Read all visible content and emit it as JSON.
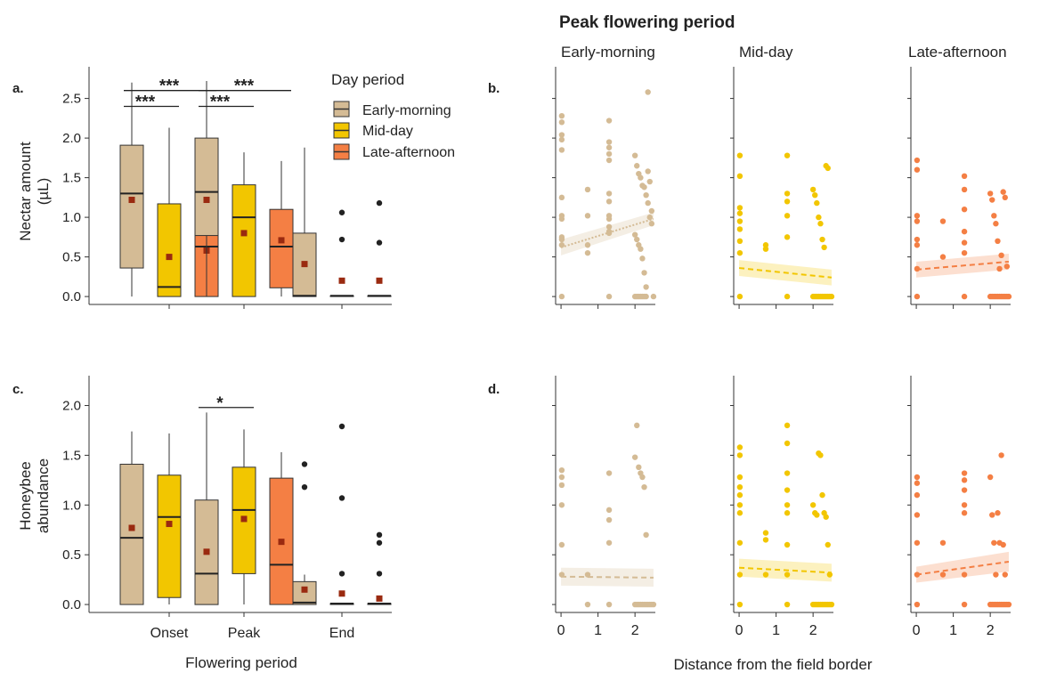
{
  "colors": {
    "early": "#d4bb95",
    "mid": "#f2c600",
    "late": "#f47f44",
    "box_stroke": "#333333",
    "mean_marker": "#9a2a10",
    "outlier": "#222222"
  },
  "figure": {
    "peak_title": "Peak flowering period",
    "facet_titles": [
      "Early-morning",
      "Mid-day",
      "Late-afternoon"
    ],
    "x_label_left": "Flowering period",
    "x_label_right": "Distance from the field border"
  },
  "legend": {
    "title": "Day period",
    "items": [
      "Early-morning",
      "Mid-day",
      "Late-afternoon"
    ]
  },
  "chart_data": [
    {
      "panel": "a.",
      "type": "box",
      "ylabel": [
        "Nectar amount",
        "(µL)"
      ],
      "ylim": [
        -0.1,
        2.9
      ],
      "yticks": [
        "0.0",
        "0.5",
        "1.0",
        "1.5",
        "2.0",
        "2.5"
      ],
      "categories": [
        "Onset",
        "Peak",
        "End"
      ],
      "groups": [
        {
          "category": "Onset",
          "period": "Early-morning",
          "q1": 0.36,
          "median": 1.3,
          "q3": 1.91,
          "wmin": 0.0,
          "wmax": 2.7,
          "mean": 1.22,
          "outliers": []
        },
        {
          "category": "Onset",
          "period": "Mid-day",
          "q1": 0.0,
          "median": 0.12,
          "q3": 1.17,
          "wmin": 0.0,
          "wmax": 2.13,
          "mean": 0.5,
          "outliers": []
        },
        {
          "category": "Onset",
          "period": "Late-afternoon",
          "q1": 0.0,
          "median": 0.63,
          "q3": 1.15,
          "wmin": 0.0,
          "wmax": 2.24,
          "mean": 0.58,
          "outliers": []
        },
        {
          "category": "Peak",
          "period": "Early-morning",
          "q1": 0.77,
          "median": 1.32,
          "q3": 2.0,
          "wmin": 0.0,
          "wmax": 2.72,
          "mean": 1.22,
          "outliers": []
        },
        {
          "category": "Peak",
          "period": "Mid-day",
          "q1": 0.0,
          "median": 1.0,
          "q3": 1.41,
          "wmin": 0.0,
          "wmax": 1.82,
          "mean": 0.8,
          "outliers": []
        },
        {
          "category": "Peak",
          "period": "Late-afternoon",
          "q1": 0.11,
          "median": 0.63,
          "q3": 1.1,
          "wmin": 0.0,
          "wmax": 1.71,
          "mean": 0.71,
          "outliers": []
        },
        {
          "category": "End",
          "period": "Early-morning",
          "q1": 0.0,
          "median": 0.01,
          "q3": 0.8,
          "wmin": 0.0,
          "wmax": 1.88,
          "mean": 0.41,
          "outliers": []
        },
        {
          "category": "End",
          "period": "Mid-day",
          "q1": 0.0,
          "median": 0.01,
          "q3": 0.01,
          "wmin": 0.0,
          "wmax": 0.01,
          "mean": 0.2,
          "outliers": [
            1.06,
            0.72
          ]
        },
        {
          "category": "End",
          "period": "Late-afternoon",
          "q1": 0.0,
          "median": 0.01,
          "q3": 0.01,
          "wmin": 0.0,
          "wmax": 0.01,
          "mean": 0.2,
          "outliers": [
            1.18,
            0.68
          ]
        }
      ],
      "significance": [
        {
          "label": "***",
          "category": "Onset",
          "from": 0,
          "to": 2,
          "y": 2.6
        },
        {
          "label": "***",
          "category": "Onset",
          "from": 0,
          "to": 1,
          "y": 2.4
        },
        {
          "label": "***",
          "category": "Peak",
          "from": 0,
          "to": 2,
          "y": 2.6
        },
        {
          "label": "***",
          "category": "Peak",
          "from": 0,
          "to": 1,
          "y": 2.4
        }
      ]
    },
    {
      "panel": "c.",
      "type": "box",
      "ylabel": [
        "Honeybee",
        "abundance"
      ],
      "ylim": [
        -0.08,
        2.3
      ],
      "yticks": [
        "0.0",
        "0.5",
        "1.0",
        "1.5",
        "2.0"
      ],
      "categories": [
        "Onset",
        "Peak",
        "End"
      ],
      "groups": [
        {
          "category": "Onset",
          "period": "Early-morning",
          "q1": 0.0,
          "median": 0.67,
          "q3": 1.41,
          "wmin": 0.0,
          "wmax": 1.74,
          "mean": 0.77,
          "outliers": []
        },
        {
          "category": "Onset",
          "period": "Mid-day",
          "q1": 0.07,
          "median": 0.88,
          "q3": 1.3,
          "wmin": 0.0,
          "wmax": 1.72,
          "mean": 0.81,
          "outliers": []
        },
        {
          "category": "Onset",
          "period": "Late-afternoon",
          "q1": 0.0,
          "median": 0.31,
          "q3": 0.91,
          "wmin": 0.0,
          "wmax": 1.76,
          "mean": 0.52,
          "outliers": []
        },
        {
          "category": "Peak",
          "period": "Early-morning",
          "q1": 0.0,
          "median": 0.31,
          "q3": 1.05,
          "wmin": 0.0,
          "wmax": 1.93,
          "mean": 0.53,
          "outliers": []
        },
        {
          "category": "Peak",
          "period": "Mid-day",
          "q1": 0.31,
          "median": 0.95,
          "q3": 1.38,
          "wmin": 0.0,
          "wmax": 1.76,
          "mean": 0.86,
          "outliers": []
        },
        {
          "category": "Peak",
          "period": "Late-afternoon",
          "q1": 0.0,
          "median": 0.4,
          "q3": 1.27,
          "wmin": 0.0,
          "wmax": 1.53,
          "mean": 0.63,
          "outliers": []
        },
        {
          "category": "End",
          "period": "Early-morning",
          "q1": 0.0,
          "median": 0.02,
          "q3": 0.23,
          "wmin": 0.0,
          "wmax": 0.3,
          "mean": 0.15,
          "outliers": [
            1.41,
            1.18
          ]
        },
        {
          "category": "End",
          "period": "Mid-day",
          "q1": 0.0,
          "median": 0.01,
          "q3": 0.01,
          "wmin": 0.0,
          "wmax": 0.01,
          "mean": 0.11,
          "outliers": [
            1.79,
            1.07,
            0.31
          ]
        },
        {
          "category": "End",
          "period": "Late-afternoon",
          "q1": 0.0,
          "median": 0.01,
          "q3": 0.01,
          "wmin": 0.0,
          "wmax": 0.01,
          "mean": 0.06,
          "outliers": [
            0.7,
            0.62,
            0.31
          ]
        }
      ],
      "significance": [
        {
          "label": "*",
          "category": "Peak",
          "from": 0,
          "to": 1,
          "y": 1.98
        }
      ]
    },
    {
      "panel": "b.",
      "type": "scatter",
      "xlim": [
        -0.05,
        2.55
      ],
      "xticks": [
        "0",
        "1",
        "2"
      ],
      "ylim": [
        -0.1,
        2.9
      ],
      "facets": [
        {
          "title": "Early-morning",
          "line": {
            "y0": 0.62,
            "y1": 0.98,
            "style": "dotted"
          },
          "band": {
            "w0": 0.1,
            "w1": 0.08
          },
          "x": [
            0.02,
            0.02,
            0.02,
            0.02,
            0.02,
            0.02,
            0.02,
            0.02,
            0.02,
            0.02,
            0.02,
            0.02,
            0.72,
            0.72,
            0.72,
            0.72,
            1.3,
            1.3,
            1.3,
            1.3,
            1.3,
            1.3,
            1.3,
            1.3,
            1.3,
            1.3,
            1.3,
            1.3,
            1.3,
            2.0,
            2.05,
            2.1,
            2.15,
            2.2,
            2.25,
            2.3,
            2.35,
            2.4,
            2.45,
            2.0,
            2.05,
            2.1,
            2.15,
            2.2,
            2.25,
            2.3,
            2.35,
            2.0,
            2.05,
            2.1,
            2.15,
            2.2,
            2.25,
            2.3,
            2.35,
            2.4,
            2.45,
            2.5
          ],
          "y": [
            2.28,
            2.2,
            2.04,
            1.98,
            1.85,
            1.25,
            1.02,
            0.98,
            0.75,
            0.72,
            0.65,
            0.0,
            1.35,
            1.02,
            0.65,
            0.55,
            2.22,
            1.95,
            1.88,
            1.8,
            1.72,
            1.3,
            1.2,
            1.02,
            0.98,
            0.88,
            0.82,
            0.8,
            0.0,
            1.78,
            1.65,
            1.55,
            1.5,
            1.4,
            1.38,
            1.28,
            1.18,
            1.0,
            0.92,
            0.78,
            0.72,
            0.65,
            0.6,
            0.48,
            0.3,
            0.12,
            2.58,
            0.0,
            0.0,
            0.0,
            0.0,
            0.0,
            0.0,
            0.0,
            1.58,
            1.45,
            1.08,
            0.0
          ]
        },
        {
          "title": "Mid-day",
          "line": {
            "y0": 0.36,
            "y1": 0.24,
            "style": "dashed"
          },
          "band": {
            "w0": 0.1,
            "w1": 0.1
          },
          "x": [
            0.02,
            0.02,
            0.02,
            0.02,
            0.02,
            0.02,
            0.02,
            0.02,
            0.02,
            0.72,
            0.72,
            1.3,
            1.3,
            1.3,
            1.3,
            1.3,
            1.3,
            2.0,
            2.05,
            2.1,
            2.15,
            2.2,
            2.25,
            2.3,
            2.35,
            2.4,
            2.0,
            2.05,
            2.1,
            2.15,
            2.2,
            2.25,
            2.3,
            2.35,
            2.4,
            2.45,
            2.5
          ],
          "y": [
            1.78,
            1.52,
            1.12,
            1.05,
            0.95,
            0.85,
            0.7,
            0.55,
            0.0,
            0.65,
            0.6,
            1.78,
            1.3,
            1.2,
            1.02,
            0.75,
            0.0,
            1.35,
            1.28,
            1.18,
            1.0,
            0.92,
            0.72,
            0.62,
            1.65,
            1.62,
            0.0,
            0.0,
            0.0,
            0.0,
            0.0,
            0.0,
            0.0,
            0.0,
            0.0,
            0.0,
            0.0
          ]
        },
        {
          "title": "Late-afternoon",
          "line": {
            "y0": 0.34,
            "y1": 0.44,
            "style": "dashed"
          },
          "band": {
            "w0": 0.1,
            "w1": 0.1
          },
          "x": [
            0.02,
            0.02,
            0.02,
            0.02,
            0.02,
            0.02,
            0.02,
            0.02,
            0.72,
            0.72,
            1.3,
            1.3,
            1.3,
            1.3,
            1.3,
            1.3,
            1.3,
            2.0,
            2.05,
            2.1,
            2.15,
            2.2,
            2.25,
            2.3,
            2.35,
            2.4,
            2.45,
            2.0,
            2.05,
            2.1,
            2.15,
            2.2,
            2.25,
            2.3,
            2.35,
            2.4,
            2.45,
            2.5
          ],
          "y": [
            1.72,
            1.6,
            1.02,
            0.95,
            0.72,
            0.65,
            0.35,
            0.0,
            0.95,
            0.5,
            1.52,
            1.35,
            1.1,
            0.82,
            0.68,
            0.55,
            0.0,
            1.3,
            1.22,
            1.02,
            0.92,
            0.7,
            0.35,
            0.52,
            1.32,
            1.25,
            0.38,
            0.0,
            0.0,
            0.0,
            0.0,
            0.0,
            0.0,
            0.0,
            0.0,
            0.0,
            0.0,
            0.0
          ]
        }
      ]
    },
    {
      "panel": "d.",
      "type": "scatter",
      "xlim": [
        -0.05,
        2.55
      ],
      "xticks": [
        "0",
        "1",
        "2"
      ],
      "ylim": [
        -0.08,
        2.3
      ],
      "facets": [
        {
          "title": "Early-morning",
          "line": {
            "y0": 0.28,
            "y1": 0.27,
            "style": "dashed"
          },
          "band": {
            "w0": 0.09,
            "w1": 0.09
          },
          "x": [
            0.02,
            0.02,
            0.02,
            0.02,
            0.02,
            0.02,
            0.72,
            0.72,
            1.3,
            1.3,
            1.3,
            1.3,
            1.3,
            2.0,
            2.05,
            2.1,
            2.15,
            2.2,
            2.25,
            2.3,
            2.0,
            2.05,
            2.1,
            2.15,
            2.2,
            2.25,
            2.3,
            2.35,
            2.4,
            2.45,
            2.5
          ],
          "y": [
            1.35,
            1.28,
            1.2,
            1.0,
            0.6,
            0.3,
            0.3,
            0.0,
            1.32,
            0.95,
            0.85,
            0.62,
            0.0,
            1.48,
            1.8,
            1.38,
            1.32,
            1.28,
            1.18,
            0.7,
            0.0,
            0.0,
            0.0,
            0.0,
            0.0,
            0.0,
            0.0,
            0.0,
            0.0,
            0.0,
            0.0
          ]
        },
        {
          "title": "Mid-day",
          "line": {
            "y0": 0.37,
            "y1": 0.32,
            "style": "dashed"
          },
          "band": {
            "w0": 0.09,
            "w1": 0.09
          },
          "x": [
            0.02,
            0.02,
            0.02,
            0.02,
            0.02,
            0.02,
            0.02,
            0.02,
            0.02,
            0.02,
            0.72,
            0.72,
            0.72,
            1.3,
            1.3,
            1.3,
            1.3,
            1.3,
            1.3,
            1.3,
            1.3,
            1.3,
            2.0,
            2.05,
            2.1,
            2.15,
            2.2,
            2.25,
            2.3,
            2.35,
            2.4,
            2.45,
            2.0,
            2.05,
            2.1,
            2.15,
            2.2,
            2.25,
            2.3,
            2.35,
            2.4,
            2.45,
            2.5
          ],
          "y": [
            1.58,
            1.5,
            1.28,
            1.18,
            1.1,
            1.0,
            0.92,
            0.62,
            0.3,
            0.0,
            0.72,
            0.65,
            0.3,
            1.8,
            1.62,
            1.32,
            1.15,
            1.0,
            0.92,
            0.6,
            0.3,
            0.0,
            1.0,
            0.92,
            0.9,
            1.52,
            1.5,
            1.1,
            0.92,
            0.88,
            0.6,
            0.3,
            0.0,
            0.0,
            0.0,
            0.0,
            0.0,
            0.0,
            0.0,
            0.0,
            0.0,
            0.0,
            0.0
          ]
        },
        {
          "title": "Late-afternoon",
          "line": {
            "y0": 0.3,
            "y1": 0.43,
            "style": "dashed"
          },
          "band": {
            "w0": 0.08,
            "w1": 0.1
          },
          "x": [
            0.02,
            0.02,
            0.02,
            0.02,
            0.02,
            0.02,
            0.02,
            0.72,
            0.72,
            1.3,
            1.3,
            1.3,
            1.3,
            1.3,
            1.3,
            1.3,
            2.0,
            2.05,
            2.1,
            2.15,
            2.2,
            2.25,
            2.3,
            2.35,
            2.4,
            2.0,
            2.05,
            2.1,
            2.15,
            2.2,
            2.25,
            2.3,
            2.35,
            2.4,
            2.45,
            2.5
          ],
          "y": [
            1.28,
            1.22,
            1.1,
            0.9,
            0.62,
            0.3,
            0.0,
            0.62,
            0.3,
            1.32,
            1.25,
            1.15,
            1.0,
            0.92,
            0.3,
            0.0,
            1.28,
            0.9,
            0.62,
            0.3,
            0.92,
            0.62,
            1.5,
            0.6,
            0.3,
            0.0,
            0.0,
            0.0,
            0.0,
            0.0,
            0.0,
            0.0,
            0.0,
            0.0,
            0.0,
            0.0
          ]
        }
      ]
    }
  ]
}
